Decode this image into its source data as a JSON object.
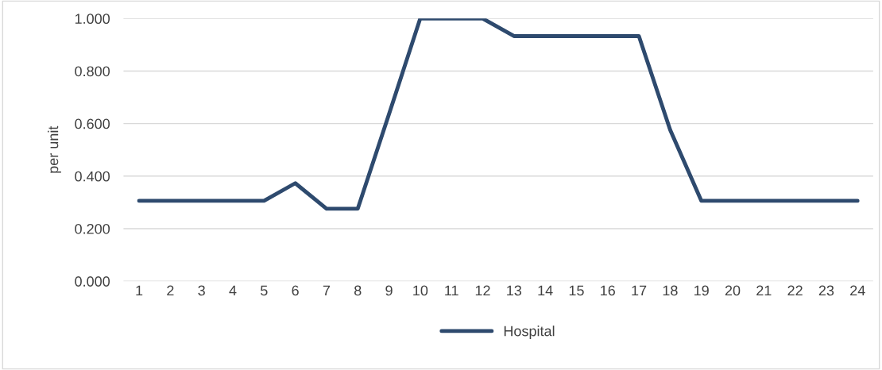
{
  "chart_data": {
    "type": "line",
    "ylabel": "per unit",
    "categories": [
      "1",
      "2",
      "3",
      "4",
      "5",
      "6",
      "7",
      "8",
      "9",
      "10",
      "11",
      "12",
      "13",
      "14",
      "15",
      "16",
      "17",
      "18",
      "19",
      "20",
      "21",
      "22",
      "23",
      "24"
    ],
    "series": [
      {
        "name": "Hospital",
        "color": "#2e4a6e",
        "values": [
          0.306,
          0.306,
          0.306,
          0.306,
          0.306,
          0.373,
          0.276,
          0.276,
          0.636,
          1.0,
          1.0,
          1.0,
          0.933,
          0.933,
          0.933,
          0.933,
          0.933,
          0.576,
          0.306,
          0.306,
          0.306,
          0.306,
          0.306,
          0.306
        ]
      }
    ],
    "ylim": [
      0,
      1.0
    ],
    "yticks": [
      {
        "value": 0,
        "label": "0.000"
      },
      {
        "value": 0.2,
        "label": "0.200"
      },
      {
        "value": 0.4,
        "label": "0.400"
      },
      {
        "value": 0.6,
        "label": "0.600"
      },
      {
        "value": 0.8,
        "label": "0.800"
      },
      {
        "value": 1.0,
        "label": "1.000"
      }
    ],
    "grid": "y",
    "legend": "bottom",
    "marker": "none",
    "line_style": "solid"
  }
}
